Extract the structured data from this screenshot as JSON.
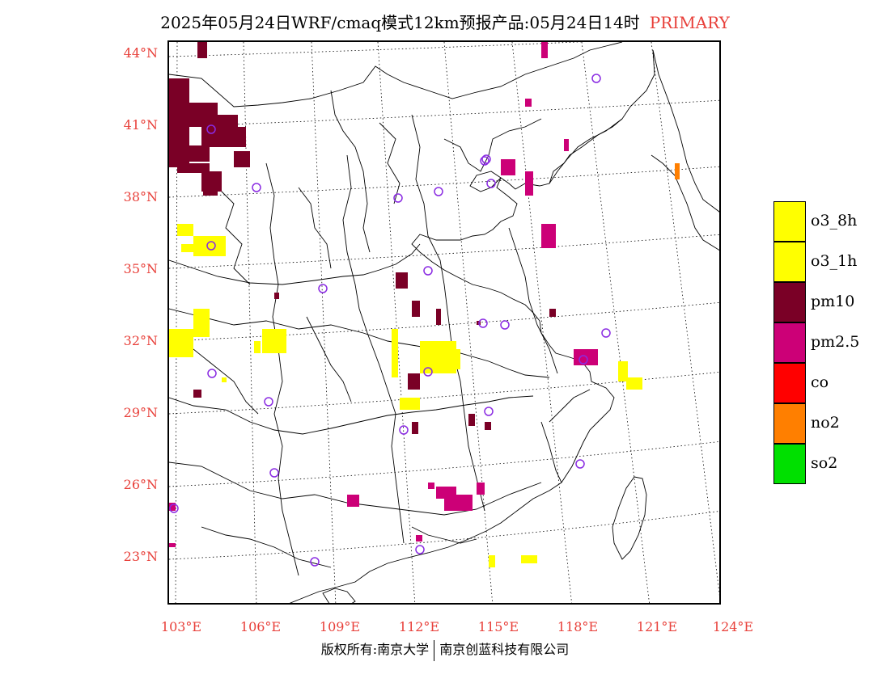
{
  "header": {
    "title": "2025年05月24日WRF/cmaq模式12km预报产品:05月24日14时",
    "tag": "PRIMARY"
  },
  "axes": {
    "lat_labels": [
      "44°N",
      "41°N",
      "38°N",
      "35°N",
      "32°N",
      "29°N",
      "26°N",
      "23°N"
    ],
    "lon_labels": [
      "103°E",
      "106°E",
      "109°E",
      "112°E",
      "115°E",
      "118°E",
      "121°E",
      "124°E"
    ]
  },
  "legend": {
    "items": [
      {
        "label": "o3_8h",
        "color": "#ffff00"
      },
      {
        "label": "o3_1h",
        "color": "#ffff00"
      },
      {
        "label": "pm10",
        "color": "#7a0026"
      },
      {
        "label": "pm2.5",
        "color": "#cc0077"
      },
      {
        "label": "co",
        "color": "#ff0000"
      },
      {
        "label": "no2",
        "color": "#ff7f00"
      },
      {
        "label": "so2",
        "color": "#00e000"
      }
    ]
  },
  "colors": {
    "axis_label": "#e8403a",
    "city_marker": "#8a2be2",
    "pm10": "#7a0026",
    "pm25": "#cc0077",
    "o3": "#ffff00",
    "no2": "#ff7f00"
  },
  "footer": {
    "left": "版权所有:南京大学",
    "right": "南京创蓝科技有限公司"
  }
}
